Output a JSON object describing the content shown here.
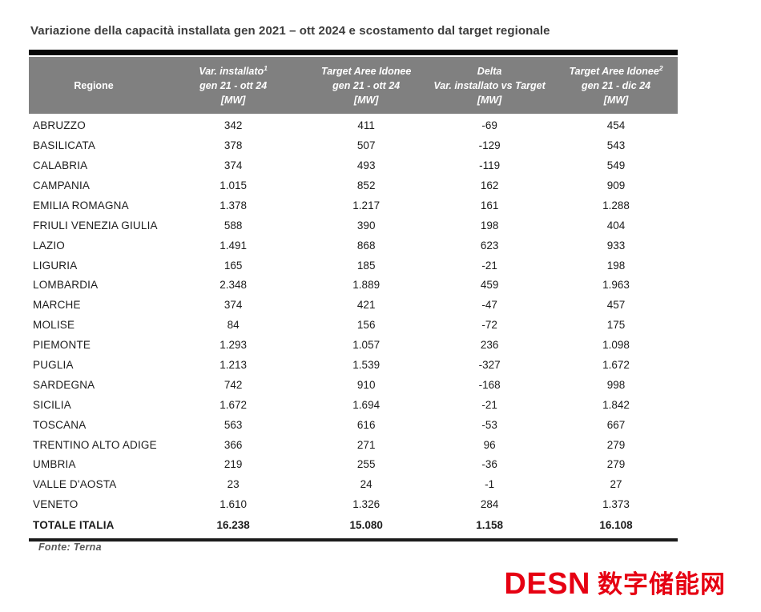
{
  "title": "Variazione della capacità installata gen 2021 – ott 2024 e scostamento dal target regionale",
  "colors": {
    "header_bg": "#808080",
    "header_text": "#ffffff",
    "rule_black": "#060606",
    "title_gray": "#3d3d3d",
    "source_gray": "#595959",
    "logo_red": "#e60012"
  },
  "table": {
    "columns": [
      {
        "label": "Regione"
      },
      {
        "line1": "Var. installato",
        "sup": "1",
        "line2": "gen 21 - ott 24",
        "line3": "[MW]"
      },
      {
        "line1": "Target Aree Idonee",
        "line2": "gen 21 - ott 24",
        "line3": "[MW]"
      },
      {
        "line1": "Delta",
        "line2": "Var. installato vs Target",
        "line3": "[MW]"
      },
      {
        "line1": "Target Aree Idonee",
        "sup": "2",
        "line2": "gen 21 - dic 24",
        "line3": "[MW]"
      }
    ],
    "rows": [
      {
        "regione": "ABRUZZO",
        "var_installato": "342",
        "target_ott": "411",
        "delta": "-69",
        "target_dic": "454"
      },
      {
        "regione": "BASILICATA",
        "var_installato": "378",
        "target_ott": "507",
        "delta": "-129",
        "target_dic": "543"
      },
      {
        "regione": "CALABRIA",
        "var_installato": "374",
        "target_ott": "493",
        "delta": "-119",
        "target_dic": "549"
      },
      {
        "regione": "CAMPANIA",
        "var_installato": "1.015",
        "target_ott": "852",
        "delta": "162",
        "target_dic": "909"
      },
      {
        "regione": "EMILIA ROMAGNA",
        "var_installato": "1.378",
        "target_ott": "1.217",
        "delta": "161",
        "target_dic": "1.288"
      },
      {
        "regione": "FRIULI VENEZIA GIULIA",
        "var_installato": "588",
        "target_ott": "390",
        "delta": "198",
        "target_dic": "404"
      },
      {
        "regione": "LAZIO",
        "var_installato": "1.491",
        "target_ott": "868",
        "delta": "623",
        "target_dic": "933"
      },
      {
        "regione": "LIGURIA",
        "var_installato": "165",
        "target_ott": "185",
        "delta": "-21",
        "target_dic": "198"
      },
      {
        "regione": "LOMBARDIA",
        "var_installato": "2.348",
        "target_ott": "1.889",
        "delta": "459",
        "target_dic": "1.963"
      },
      {
        "regione": "MARCHE",
        "var_installato": "374",
        "target_ott": "421",
        "delta": "-47",
        "target_dic": "457"
      },
      {
        "regione": "MOLISE",
        "var_installato": "84",
        "target_ott": "156",
        "delta": "-72",
        "target_dic": "175"
      },
      {
        "regione": "PIEMONTE",
        "var_installato": "1.293",
        "target_ott": "1.057",
        "delta": "236",
        "target_dic": "1.098"
      },
      {
        "regione": "PUGLIA",
        "var_installato": "1.213",
        "target_ott": "1.539",
        "delta": "-327",
        "target_dic": "1.672"
      },
      {
        "regione": "SARDEGNA",
        "var_installato": "742",
        "target_ott": "910",
        "delta": "-168",
        "target_dic": "998"
      },
      {
        "regione": "SICILIA",
        "var_installato": "1.672",
        "target_ott": "1.694",
        "delta": "-21",
        "target_dic": "1.842"
      },
      {
        "regione": "TOSCANA",
        "var_installato": "563",
        "target_ott": "616",
        "delta": "-53",
        "target_dic": "667"
      },
      {
        "regione": "TRENTINO ALTO ADIGE",
        "var_installato": "366",
        "target_ott": "271",
        "delta": "96",
        "target_dic": "279"
      },
      {
        "regione": "UMBRIA",
        "var_installato": "219",
        "target_ott": "255",
        "delta": "-36",
        "target_dic": "279"
      },
      {
        "regione": "VALLE D'AOSTA",
        "var_installato": "23",
        "target_ott": "24",
        "delta": "-1",
        "target_dic": "27"
      },
      {
        "regione": "VENETO",
        "var_installato": "1.610",
        "target_ott": "1.326",
        "delta": "284",
        "target_dic": "1.373"
      }
    ],
    "total_row": {
      "regione": "TOTALE ITALIA",
      "var_installato": "16.238",
      "target_ott": "15.080",
      "delta": "1.158",
      "target_dic": "16.108"
    }
  },
  "source": "Fonte: Terna",
  "logo": {
    "latin": "DESN",
    "cjk": "数字储能网"
  }
}
